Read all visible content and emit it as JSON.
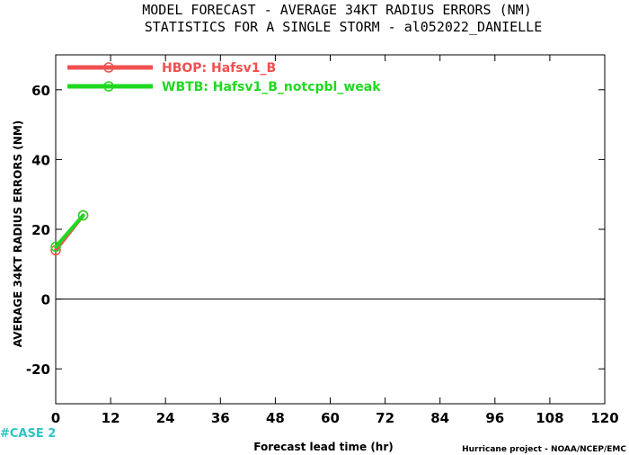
{
  "title": {
    "line1": "MODEL FORECAST - AVERAGE 34KT RADIUS ERRORS (NM)",
    "line2": "STATISTICS FOR A SINGLE STORM - al052022_DANIELLE"
  },
  "case_label": "#CASE 2",
  "credit": "Hurricane project - NOAA/NCEP/EMC",
  "colors": {
    "series1": "#f05050",
    "series2": "#20d820",
    "zero_line": "#000000",
    "case": "#2ec4c4"
  },
  "chart_data": {
    "type": "line",
    "xlabel": "Forecast lead time (hr)",
    "ylabel": "AVERAGE 34KT RADIUS ERRORS (NM)",
    "xlim": [
      0,
      120
    ],
    "ylim": [
      -30,
      70
    ],
    "xticks": [
      0,
      12,
      24,
      36,
      48,
      60,
      72,
      84,
      96,
      108,
      120
    ],
    "yticks": [
      -20,
      0,
      20,
      40,
      60
    ],
    "legend_position": "top-left",
    "grid": false,
    "series": [
      {
        "name": "HBOP: Hafsv1_B",
        "color": "#f05050",
        "x": [
          0,
          6
        ],
        "values": [
          14,
          24
        ]
      },
      {
        "name": "WBTB: Hafsv1_B_notcpbl_weak",
        "color": "#20d820",
        "x": [
          0,
          6
        ],
        "values": [
          15,
          24
        ]
      }
    ]
  }
}
